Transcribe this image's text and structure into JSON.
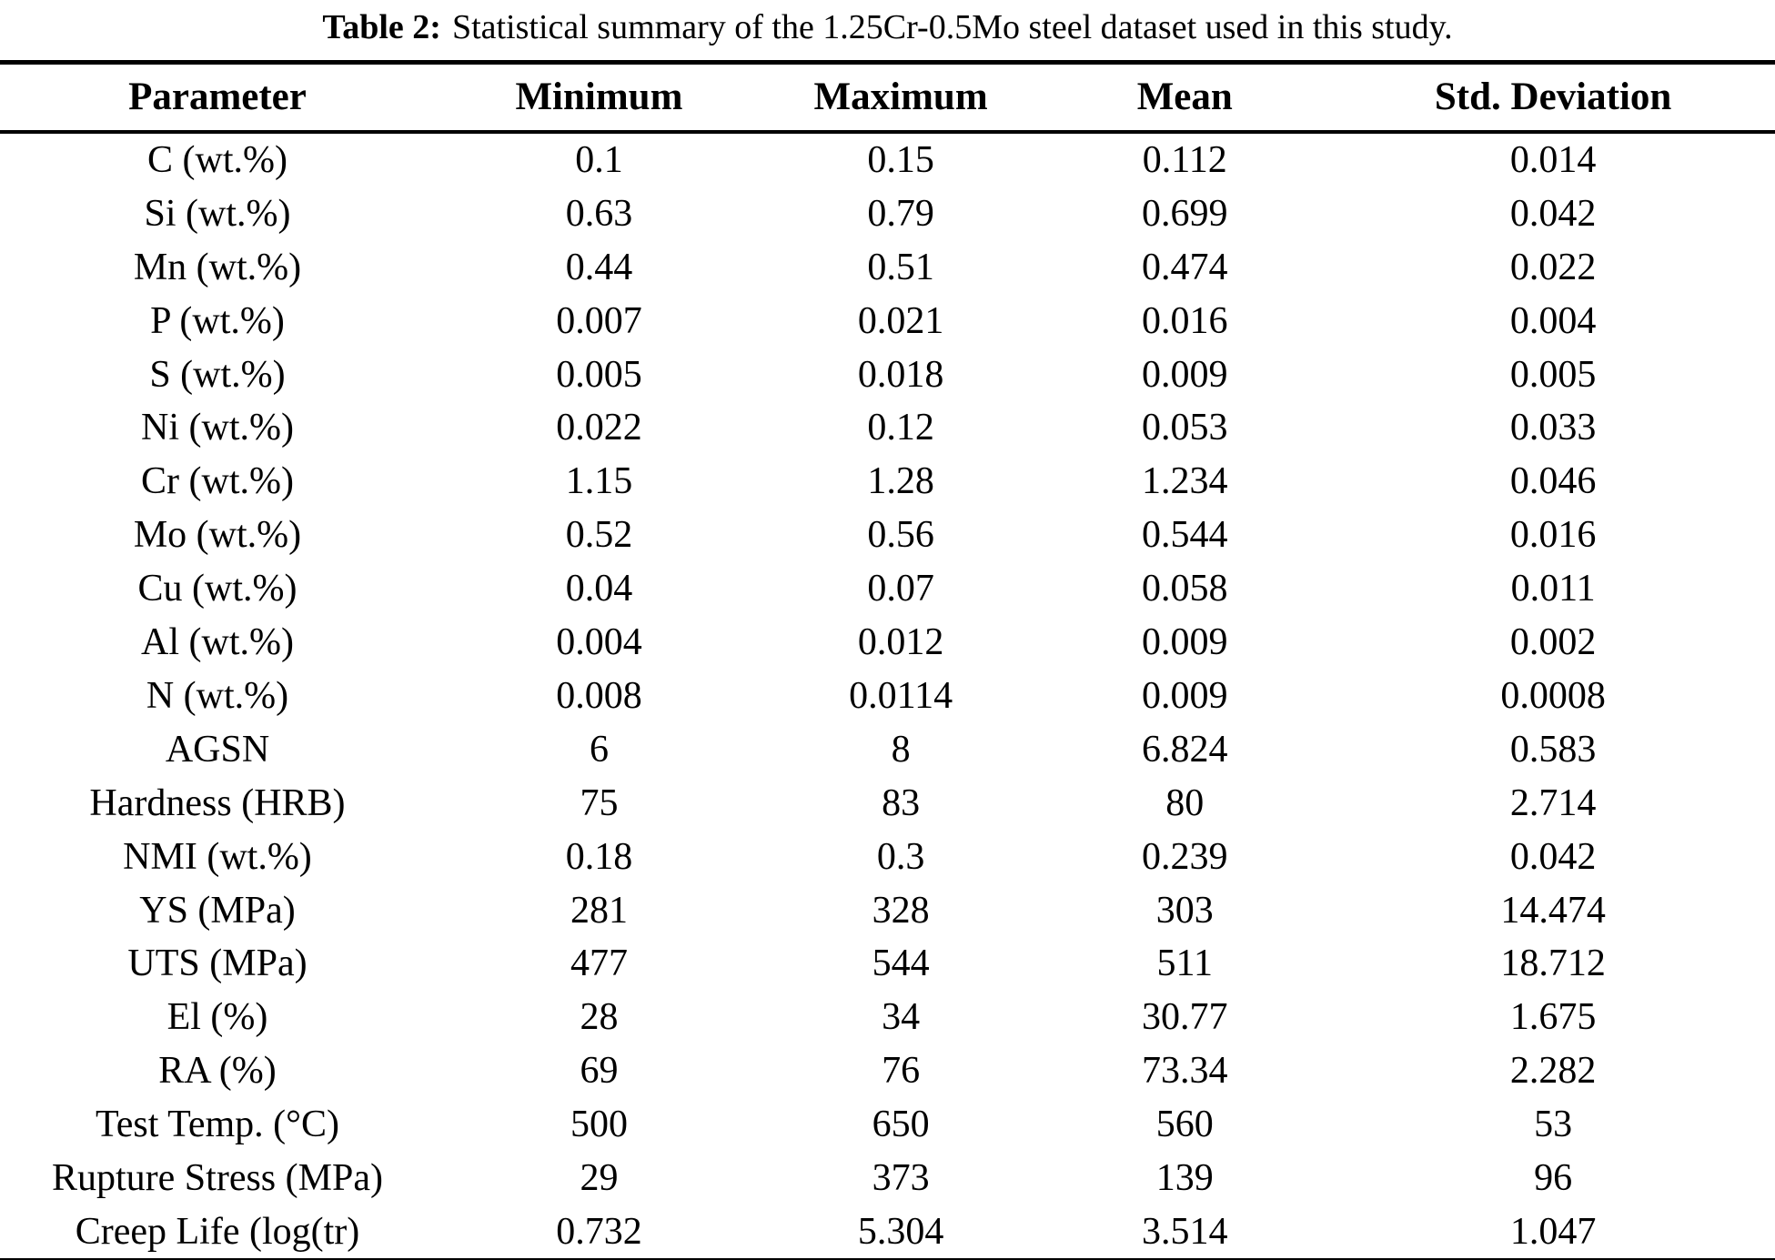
{
  "title": {
    "label": "Table 2:",
    "text": "Statistical summary of the 1.25Cr-0.5Mo steel dataset used in this study."
  },
  "table": {
    "columns": [
      "Parameter",
      "Minimum",
      "Maximum",
      "Mean",
      "Std. Deviation"
    ],
    "rows": [
      [
        "C (wt.%)",
        "0.1",
        "0.15",
        "0.112",
        "0.014"
      ],
      [
        "Si (wt.%)",
        "0.63",
        "0.79",
        "0.699",
        "0.042"
      ],
      [
        "Mn (wt.%)",
        "0.44",
        "0.51",
        "0.474",
        "0.022"
      ],
      [
        "P (wt.%)",
        "0.007",
        "0.021",
        "0.016",
        "0.004"
      ],
      [
        "S (wt.%)",
        "0.005",
        "0.018",
        "0.009",
        "0.005"
      ],
      [
        "Ni (wt.%)",
        "0.022",
        "0.12",
        "0.053",
        "0.033"
      ],
      [
        "Cr (wt.%)",
        "1.15",
        "1.28",
        "1.234",
        "0.046"
      ],
      [
        "Mo (wt.%)",
        "0.52",
        "0.56",
        "0.544",
        "0.016"
      ],
      [
        "Cu (wt.%)",
        "0.04",
        "0.07",
        "0.058",
        "0.011"
      ],
      [
        "Al (wt.%)",
        "0.004",
        "0.012",
        "0.009",
        "0.002"
      ],
      [
        "N (wt.%)",
        "0.008",
        "0.0114",
        "0.009",
        "0.0008"
      ],
      [
        "AGSN",
        "6",
        "8",
        "6.824",
        "0.583"
      ],
      [
        "Hardness (HRB)",
        "75",
        "83",
        "80",
        "2.714"
      ],
      [
        "NMI (wt.%)",
        "0.18",
        "0.3",
        "0.239",
        "0.042"
      ],
      [
        "YS (MPa)",
        "281",
        "328",
        "303",
        "14.474"
      ],
      [
        "UTS (MPa)",
        "477",
        "544",
        "511",
        "18.712"
      ],
      [
        "El (%)",
        "28",
        "34",
        "30.77",
        "1.675"
      ],
      [
        "RA (%)",
        "69",
        "76",
        "73.34",
        "2.282"
      ],
      [
        "Test Temp. (°C)",
        "500",
        "650",
        "560",
        "53"
      ],
      [
        "Rupture Stress (MPa)",
        "29",
        "373",
        "139",
        "96"
      ],
      [
        "Creep Life (log(tr)",
        "0.732",
        "5.304",
        "3.514",
        "1.047"
      ]
    ]
  }
}
